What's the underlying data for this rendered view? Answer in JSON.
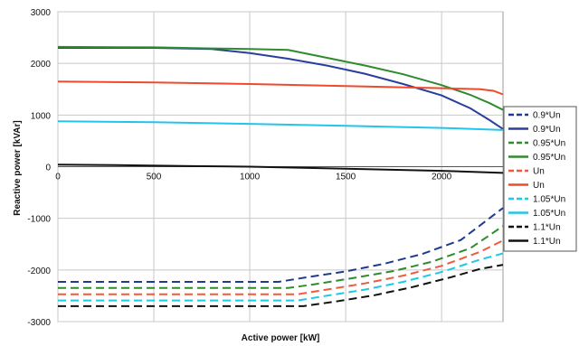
{
  "chart_data": {
    "type": "line",
    "title": "",
    "xlabel": "Active power [kW]",
    "ylabel": "Reactive power [kVAr]",
    "xlim": [
      0,
      2320
    ],
    "ylim": [
      -3000,
      3000
    ],
    "x_ticks": [
      "0",
      "500",
      "1000",
      "1500",
      "2000"
    ],
    "y_ticks": [
      "3000",
      "2000",
      "1000",
      "0",
      "-1000",
      "-2000",
      "-3000"
    ],
    "grid": true,
    "legend_position": "right",
    "series": [
      {
        "name": "0.9*Un",
        "color": "#1f3a93",
        "dash": true,
        "points": [
          [
            0,
            -2230
          ],
          [
            500,
            -2230
          ],
          [
            1000,
            -2230
          ],
          [
            1150,
            -2230
          ],
          [
            1300,
            -2140
          ],
          [
            1500,
            -2030
          ],
          [
            1700,
            -1880
          ],
          [
            1900,
            -1690
          ],
          [
            2100,
            -1420
          ],
          [
            2320,
            -800
          ]
        ]
      },
      {
        "name": "0.9*Un",
        "color": "#2a3f9d",
        "dash": false,
        "points": [
          [
            0,
            2300
          ],
          [
            500,
            2300
          ],
          [
            800,
            2280
          ],
          [
            1000,
            2200
          ],
          [
            1200,
            2090
          ],
          [
            1400,
            1960
          ],
          [
            1600,
            1800
          ],
          [
            1800,
            1600
          ],
          [
            2000,
            1380
          ],
          [
            2150,
            1130
          ],
          [
            2250,
            900
          ],
          [
            2320,
            730
          ]
        ]
      },
      {
        "name": "0.95*Un",
        "color": "#2e8b2e",
        "dash": true,
        "points": [
          [
            0,
            -2350
          ],
          [
            500,
            -2350
          ],
          [
            1000,
            -2350
          ],
          [
            1200,
            -2350
          ],
          [
            1350,
            -2270
          ],
          [
            1550,
            -2150
          ],
          [
            1750,
            -2020
          ],
          [
            1950,
            -1840
          ],
          [
            2150,
            -1580
          ],
          [
            2320,
            -1150
          ]
        ]
      },
      {
        "name": "0.95*Un",
        "color": "#2e8b2e",
        "dash": false,
        "points": [
          [
            0,
            2320
          ],
          [
            500,
            2310
          ],
          [
            800,
            2290
          ],
          [
            1000,
            2280
          ],
          [
            1200,
            2260
          ],
          [
            1400,
            2110
          ],
          [
            1600,
            1960
          ],
          [
            1800,
            1790
          ],
          [
            2000,
            1580
          ],
          [
            2150,
            1390
          ],
          [
            2250,
            1230
          ],
          [
            2320,
            1100
          ]
        ]
      },
      {
        "name": "Un",
        "color": "#f05a3c",
        "dash": true,
        "points": [
          [
            0,
            -2470
          ],
          [
            500,
            -2470
          ],
          [
            1000,
            -2470
          ],
          [
            1250,
            -2470
          ],
          [
            1400,
            -2380
          ],
          [
            1600,
            -2260
          ],
          [
            1800,
            -2110
          ],
          [
            2000,
            -1920
          ],
          [
            2200,
            -1650
          ],
          [
            2320,
            -1430
          ]
        ]
      },
      {
        "name": "Un",
        "color": "#f04a2a",
        "dash": false,
        "points": [
          [
            0,
            1650
          ],
          [
            500,
            1630
          ],
          [
            1000,
            1600
          ],
          [
            1500,
            1560
          ],
          [
            2000,
            1520
          ],
          [
            2200,
            1500
          ],
          [
            2270,
            1470
          ],
          [
            2320,
            1400
          ]
        ]
      },
      {
        "name": "1.05*Un",
        "color": "#1ec8e8",
        "dash": true,
        "points": [
          [
            0,
            -2590
          ],
          [
            500,
            -2590
          ],
          [
            1000,
            -2590
          ],
          [
            1250,
            -2590
          ],
          [
            1400,
            -2500
          ],
          [
            1600,
            -2380
          ],
          [
            1800,
            -2230
          ],
          [
            2000,
            -2040
          ],
          [
            2200,
            -1800
          ],
          [
            2320,
            -1680
          ]
        ]
      },
      {
        "name": "1.05*Un",
        "color": "#22c4ec",
        "dash": false,
        "points": [
          [
            0,
            880
          ],
          [
            500,
            860
          ],
          [
            1000,
            830
          ],
          [
            1500,
            790
          ],
          [
            2000,
            750
          ],
          [
            2320,
            710
          ]
        ]
      },
      {
        "name": "1.1*Un",
        "color": "#111111",
        "dash": true,
        "points": [
          [
            0,
            -2700
          ],
          [
            500,
            -2700
          ],
          [
            1000,
            -2700
          ],
          [
            1280,
            -2700
          ],
          [
            1450,
            -2610
          ],
          [
            1650,
            -2490
          ],
          [
            1850,
            -2330
          ],
          [
            2050,
            -2140
          ],
          [
            2200,
            -1980
          ],
          [
            2320,
            -1900
          ]
        ]
      },
      {
        "name": "1.1*Un",
        "color": "#111111",
        "dash": false,
        "points": [
          [
            0,
            40
          ],
          [
            300,
            30
          ],
          [
            700,
            10
          ],
          [
            1000,
            0
          ],
          [
            1500,
            -40
          ],
          [
            2000,
            -80
          ],
          [
            2320,
            -120
          ]
        ]
      }
    ]
  }
}
